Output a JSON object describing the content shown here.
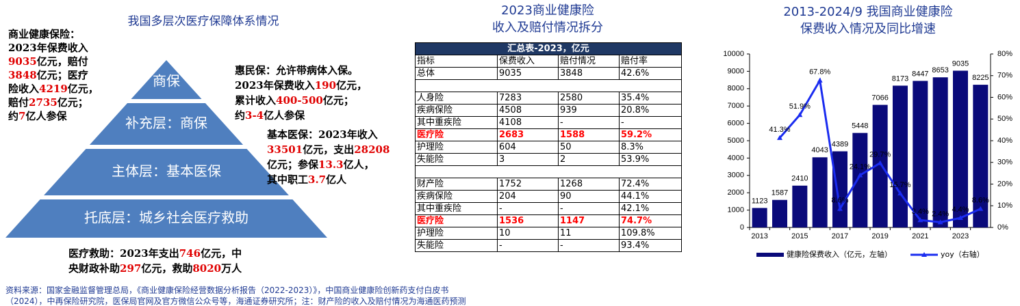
{
  "pyramid": {
    "title": "我国多层次医疗保障体系情况",
    "layers": [
      "商保",
      "补充层：商保",
      "主体层：基本医保",
      "托底层：城乡社会医疗救助"
    ],
    "color": "#4f7fbf",
    "highlight_color": "#e00000",
    "annotations": [
      {
        "lines": [
          [
            "商业健康保险："
          ],
          [
            "2023年保费收入"
          ],
          [
            {
              "text": "9035"
            },
            "亿元，赔付"
          ],
          [
            {
              "text": "3848"
            },
            "亿元；医疗"
          ],
          [
            "险收入",
            {
              "text": "4219"
            },
            "亿元，"
          ],
          [
            "赔付",
            {
              "text": "2735"
            },
            "亿元；"
          ],
          [
            "约",
            {
              "text": "7"
            },
            "亿人参保"
          ]
        ]
      },
      {
        "lines": [
          [
            "惠民保：允许带病体入保。"
          ],
          [
            "2023年保费收入",
            {
              "text": "190"
            },
            "亿元，"
          ],
          [
            "累计收入",
            {
              "text": "400-500"
            },
            "亿元；"
          ],
          [
            "约",
            {
              "text": "3-4"
            },
            "亿人参保"
          ]
        ]
      },
      {
        "lines": [
          [
            "基本医保：2023年收入"
          ],
          [
            {
              "text": "33501"
            },
            "亿元，支出",
            {
              "text": "28208"
            }
          ],
          [
            "亿元；参保",
            {
              "text": "13.3"
            },
            "亿人，"
          ],
          [
            "其中职工",
            {
              "text": "3.7"
            },
            "亿人"
          ]
        ]
      },
      {
        "lines": [
          [
            "医疗救助：2023年支出",
            {
              "text": "746"
            },
            "亿元，中"
          ],
          [
            "央财政补助",
            {
              "text": "297"
            },
            "亿元，救助",
            {
              "text": "8020"
            },
            "万人"
          ]
        ]
      }
    ]
  },
  "table": {
    "title": [
      "2023商业健康险",
      "收入及赔付情况拆分"
    ],
    "caption": "汇总表-2023，亿元",
    "header": [
      "指标",
      "保费收入",
      "赔付情况",
      "赔付率"
    ],
    "highlight_color": "#ff0000",
    "groups": [
      [
        {
          "cells": [
            "总体",
            "9035",
            "3848",
            "42.6%"
          ]
        }
      ],
      [
        {
          "cells": [
            "人身险",
            "7283",
            "2580",
            "35.4%"
          ]
        },
        {
          "cells": [
            "疾病保险",
            "4508",
            "939",
            "20.8%"
          ]
        },
        {
          "cells": [
            "其中重疾险",
            "4108",
            "-",
            "-"
          ]
        },
        {
          "cells": [
            "医疗险",
            "2683",
            "1588",
            "59.2%"
          ],
          "highlight": true
        },
        {
          "cells": [
            "护理险",
            "604",
            "50",
            "8.3%"
          ]
        },
        {
          "cells": [
            "失能险",
            "3",
            "2",
            "53.9%"
          ]
        }
      ],
      [
        {
          "cells": [
            "财产险",
            "1752",
            "1268",
            "72.4%"
          ]
        },
        {
          "cells": [
            "疾病保险",
            "204",
            "90",
            "44.1%"
          ]
        },
        {
          "cells": [
            "其中重疾险",
            "-",
            "-",
            "42.1%"
          ]
        },
        {
          "cells": [
            "医疗险",
            "1536",
            "1147",
            "74.7%"
          ],
          "highlight": true
        },
        {
          "cells": [
            "护理险",
            "10",
            "11",
            "109.8%"
          ]
        },
        {
          "cells": [
            "失能险",
            "-",
            "-",
            "93.4%"
          ]
        }
      ]
    ]
  },
  "chart_data": {
    "type": "bar",
    "title": [
      "2013-2024/9 我国商业健康险",
      "保费收入情况及同比增速"
    ],
    "categories": [
      "2013",
      null,
      "2015",
      null,
      "2017",
      null,
      "2019",
      null,
      "2021",
      null,
      "2023",
      null
    ],
    "series": [
      {
        "name": "健康险保费收入（亿元，左轴）",
        "type": "bar",
        "color": "#0a0a7a",
        "values": [
          1123,
          1587,
          2410,
          4043,
          4389,
          5448,
          7066,
          8173,
          8447,
          8653,
          9035,
          8225
        ]
      },
      {
        "name": "yoy（右轴）",
        "type": "line",
        "axis": "y2",
        "color": "#1a2cf0",
        "values": [
          null,
          41.3,
          51.9,
          67.8,
          8.6,
          24.1,
          29.7,
          15.7,
          3.4,
          2.4,
          4.4,
          8.6
        ],
        "value_labels": [
          null,
          "41.3%",
          "51.9%",
          "67.8%",
          "8.6%",
          "24.1%",
          "29.7%",
          "15.7%",
          "3.4%",
          "2.4%",
          "4.4%",
          "8.6%"
        ]
      }
    ],
    "ylim": [
      0,
      10000
    ],
    "yticks": [
      0,
      1000,
      2000,
      3000,
      4000,
      5000,
      6000,
      7000,
      8000,
      9000,
      10000
    ],
    "y2lim": [
      0,
      80
    ],
    "y2ticks": [
      {
        "value": 0,
        "label": "0%"
      },
      {
        "value": 10,
        "label": "10%"
      },
      {
        "value": 20,
        "label": "20%"
      },
      {
        "value": 30,
        "label": "30%"
      },
      {
        "value": 40,
        "label": "40%"
      },
      {
        "value": 50,
        "label": "50%"
      },
      {
        "value": 60,
        "label": "60%"
      },
      {
        "value": 70,
        "label": "70%"
      },
      {
        "value": 80,
        "label": "80%"
      }
    ],
    "grid": false,
    "legend": "bottom"
  },
  "source": [
    "资料来源：国家金融监督管理总局，《商业健康保险经营数据分析报告（2022-2023）》，中国商业健康险创新药支付白皮书",
    "（2024），中再保险研究院，医保局官网及官方微信公众号等，海通证券研究所；注：财产险的收入及赔付情况为海通医药预测"
  ]
}
